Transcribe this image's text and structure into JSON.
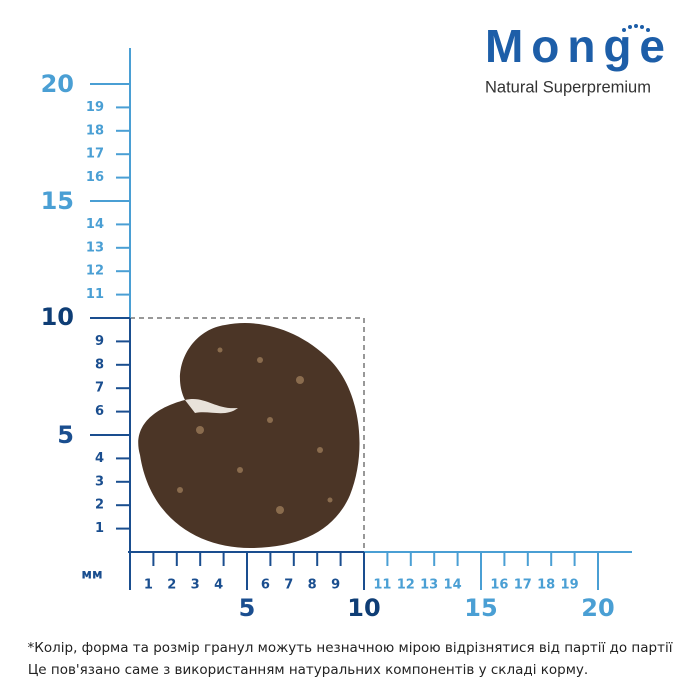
{
  "logo": {
    "brand": "Monge",
    "tagline": "Natural Superpremium"
  },
  "ruler": {
    "unit": "мм",
    "y_labels": [
      1,
      2,
      3,
      4,
      5,
      6,
      7,
      8,
      9,
      10,
      11,
      12,
      13,
      14,
      15,
      16,
      17,
      18,
      19,
      20
    ],
    "x_labels": [
      1,
      2,
      3,
      4,
      5,
      6,
      7,
      8,
      9,
      10,
      11,
      12,
      13,
      14,
      15,
      16,
      17,
      18,
      19,
      20
    ]
  },
  "footnote": {
    "line1": "*Колір, форма та розмір гранул можуть незначною мірою відрізнятися від партії до партії",
    "line2": "Це пов'язано саме з використанням натуральних компонентів у складі корму."
  }
}
